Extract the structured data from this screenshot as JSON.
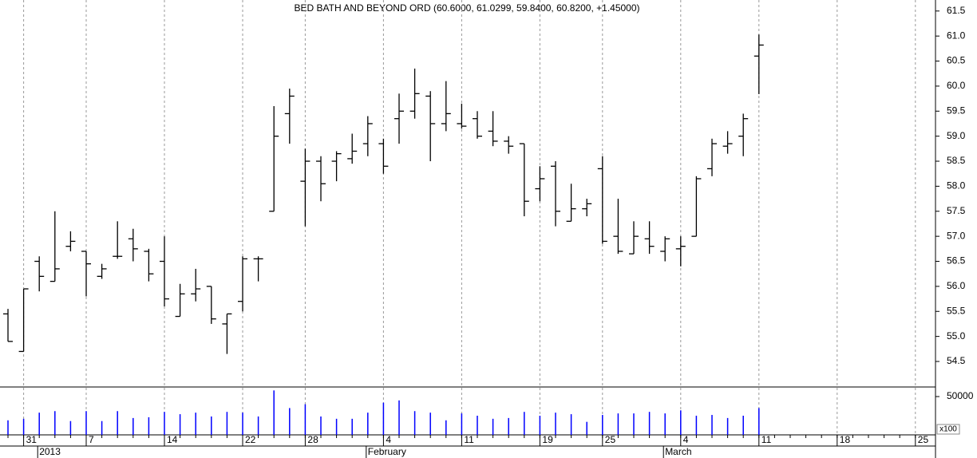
{
  "chart_data": [
    {
      "type": "ohlc",
      "title": "BED BATH AND BEYOND ORD (60.6000, 61.0299, 59.8400, 60.8200, +1.45000)",
      "categories": [
        null,
        "31",
        null,
        null,
        null,
        "7",
        null,
        null,
        null,
        null,
        "14",
        null,
        null,
        null,
        null,
        "22",
        null,
        null,
        null,
        "28",
        null,
        null,
        null,
        null,
        "4",
        null,
        null,
        null,
        null,
        "11",
        null,
        null,
        null,
        null,
        "19",
        null,
        null,
        null,
        "25",
        null,
        null,
        null,
        null,
        "4",
        null,
        null,
        null,
        null,
        "11",
        null,
        null,
        null,
        null,
        "18",
        null,
        null,
        null,
        null,
        "25"
      ],
      "periods": [
        null,
        null,
        "2013",
        null,
        null,
        null,
        null,
        null,
        null,
        null,
        null,
        null,
        null,
        null,
        null,
        null,
        null,
        null,
        null,
        null,
        null,
        null,
        null,
        "February",
        null,
        null,
        null,
        null,
        null,
        null,
        null,
        null,
        null,
        null,
        null,
        null,
        null,
        null,
        null,
        null,
        null,
        null,
        "March",
        null,
        null,
        null,
        null,
        null,
        null,
        null,
        null,
        null,
        null,
        null,
        null,
        null,
        null,
        null,
        null
      ],
      "open": [
        55.45,
        54.7,
        56.5,
        56.1,
        56.8,
        56.7,
        56.2,
        56.6,
        56.95,
        56.7,
        56.5,
        55.4,
        55.85,
        56.0,
        55.25,
        55.7,
        56.55,
        57.5,
        59.45,
        58.1,
        58.5,
        58.5,
        58.55,
        58.85,
        58.85,
        59.35,
        59.5,
        59.8,
        59.25,
        59.25,
        59.35,
        59.1,
        58.9,
        58.85,
        57.95,
        58.4,
        57.3,
        57.55,
        58.35,
        57.0,
        56.65,
        56.95,
        56.7,
        56.75,
        57.0,
        58.35,
        58.8,
        59.0,
        60.6,
        null,
        null,
        null,
        null,
        null,
        null,
        null,
        null,
        null,
        null
      ],
      "high": [
        55.55,
        55.95,
        56.6,
        57.5,
        57.1,
        56.7,
        56.45,
        57.3,
        57.15,
        56.75,
        57.0,
        56.05,
        56.35,
        56.0,
        55.45,
        56.6,
        56.6,
        59.6,
        59.95,
        58.75,
        58.6,
        58.7,
        59.05,
        59.4,
        58.95,
        59.85,
        60.35,
        59.9,
        60.1,
        59.65,
        59.5,
        59.5,
        59.0,
        58.85,
        58.4,
        58.5,
        58.05,
        57.75,
        58.6,
        57.75,
        57.3,
        57.3,
        57.0,
        57.0,
        58.2,
        58.95,
        59.1,
        59.45,
        61.0299,
        null,
        null,
        null,
        null,
        null,
        null,
        null,
        null,
        null,
        null
      ],
      "low": [
        54.9,
        54.7,
        55.9,
        56.1,
        56.7,
        55.8,
        56.15,
        56.55,
        56.5,
        56.1,
        55.6,
        55.4,
        55.7,
        55.25,
        54.65,
        55.5,
        56.1,
        57.5,
        58.85,
        57.2,
        57.7,
        58.1,
        58.45,
        58.6,
        58.25,
        58.85,
        59.35,
        58.5,
        59.1,
        59.15,
        58.95,
        58.8,
        58.65,
        57.4,
        57.7,
        57.2,
        57.3,
        57.4,
        56.85,
        56.65,
        56.65,
        56.65,
        56.5,
        56.4,
        57.0,
        58.2,
        58.65,
        58.6,
        59.84,
        null,
        null,
        null,
        null,
        null,
        null,
        null,
        null,
        null,
        null
      ],
      "close": [
        54.9,
        55.95,
        56.2,
        56.35,
        56.9,
        56.45,
        56.35,
        56.6,
        56.75,
        56.25,
        55.75,
        55.85,
        55.95,
        55.35,
        55.45,
        56.55,
        56.55,
        59.0,
        59.8,
        58.5,
        58.05,
        58.65,
        58.7,
        59.25,
        58.4,
        59.5,
        59.85,
        59.25,
        59.45,
        59.2,
        59.0,
        58.9,
        58.8,
        57.7,
        58.15,
        57.5,
        57.55,
        57.65,
        56.9,
        56.7,
        57.0,
        56.8,
        56.95,
        56.8,
        58.15,
        58.85,
        58.85,
        59.35,
        60.82,
        null,
        null,
        null,
        null,
        null,
        null,
        null,
        null,
        null,
        null
      ],
      "color": "#000000",
      "ylim": [
        53.99,
        61.72
      ],
      "yticks": [
        54.5,
        {
          "value": 55,
          "label": "55.0"
        },
        55.5,
        {
          "value": 56,
          "label": "56.0"
        },
        56.5,
        {
          "value": 57,
          "label": "57.0"
        },
        57.5,
        {
          "value": 58,
          "label": "58.0"
        },
        58.5,
        {
          "value": 59,
          "label": "59.0"
        },
        59.5,
        {
          "value": 60,
          "label": "60.0"
        },
        60.5,
        {
          "value": 61,
          "label": "61.0"
        },
        61.5
      ],
      "grid": true
    },
    {
      "type": "bar",
      "values": [
        19000,
        21000,
        29000,
        31000,
        18000,
        31000,
        18000,
        31000,
        22000,
        23000,
        30000,
        27000,
        29000,
        24000,
        30000,
        29000,
        24000,
        58000,
        35000,
        40000,
        24000,
        21000,
        21000,
        29000,
        42000,
        45000,
        31000,
        29000,
        19000,
        28000,
        25000,
        21000,
        22000,
        30000,
        25000,
        29000,
        27000,
        17000,
        26000,
        28000,
        28000,
        30000,
        28000,
        32000,
        25000,
        26000,
        22000,
        25000,
        35000,
        null,
        null,
        null,
        null,
        null,
        null,
        null,
        null,
        null,
        null
      ],
      "color": "#0000ff",
      "ylim": [
        0,
        62500
      ],
      "yticks": [
        50000
      ],
      "unit_label": "x100"
    }
  ]
}
